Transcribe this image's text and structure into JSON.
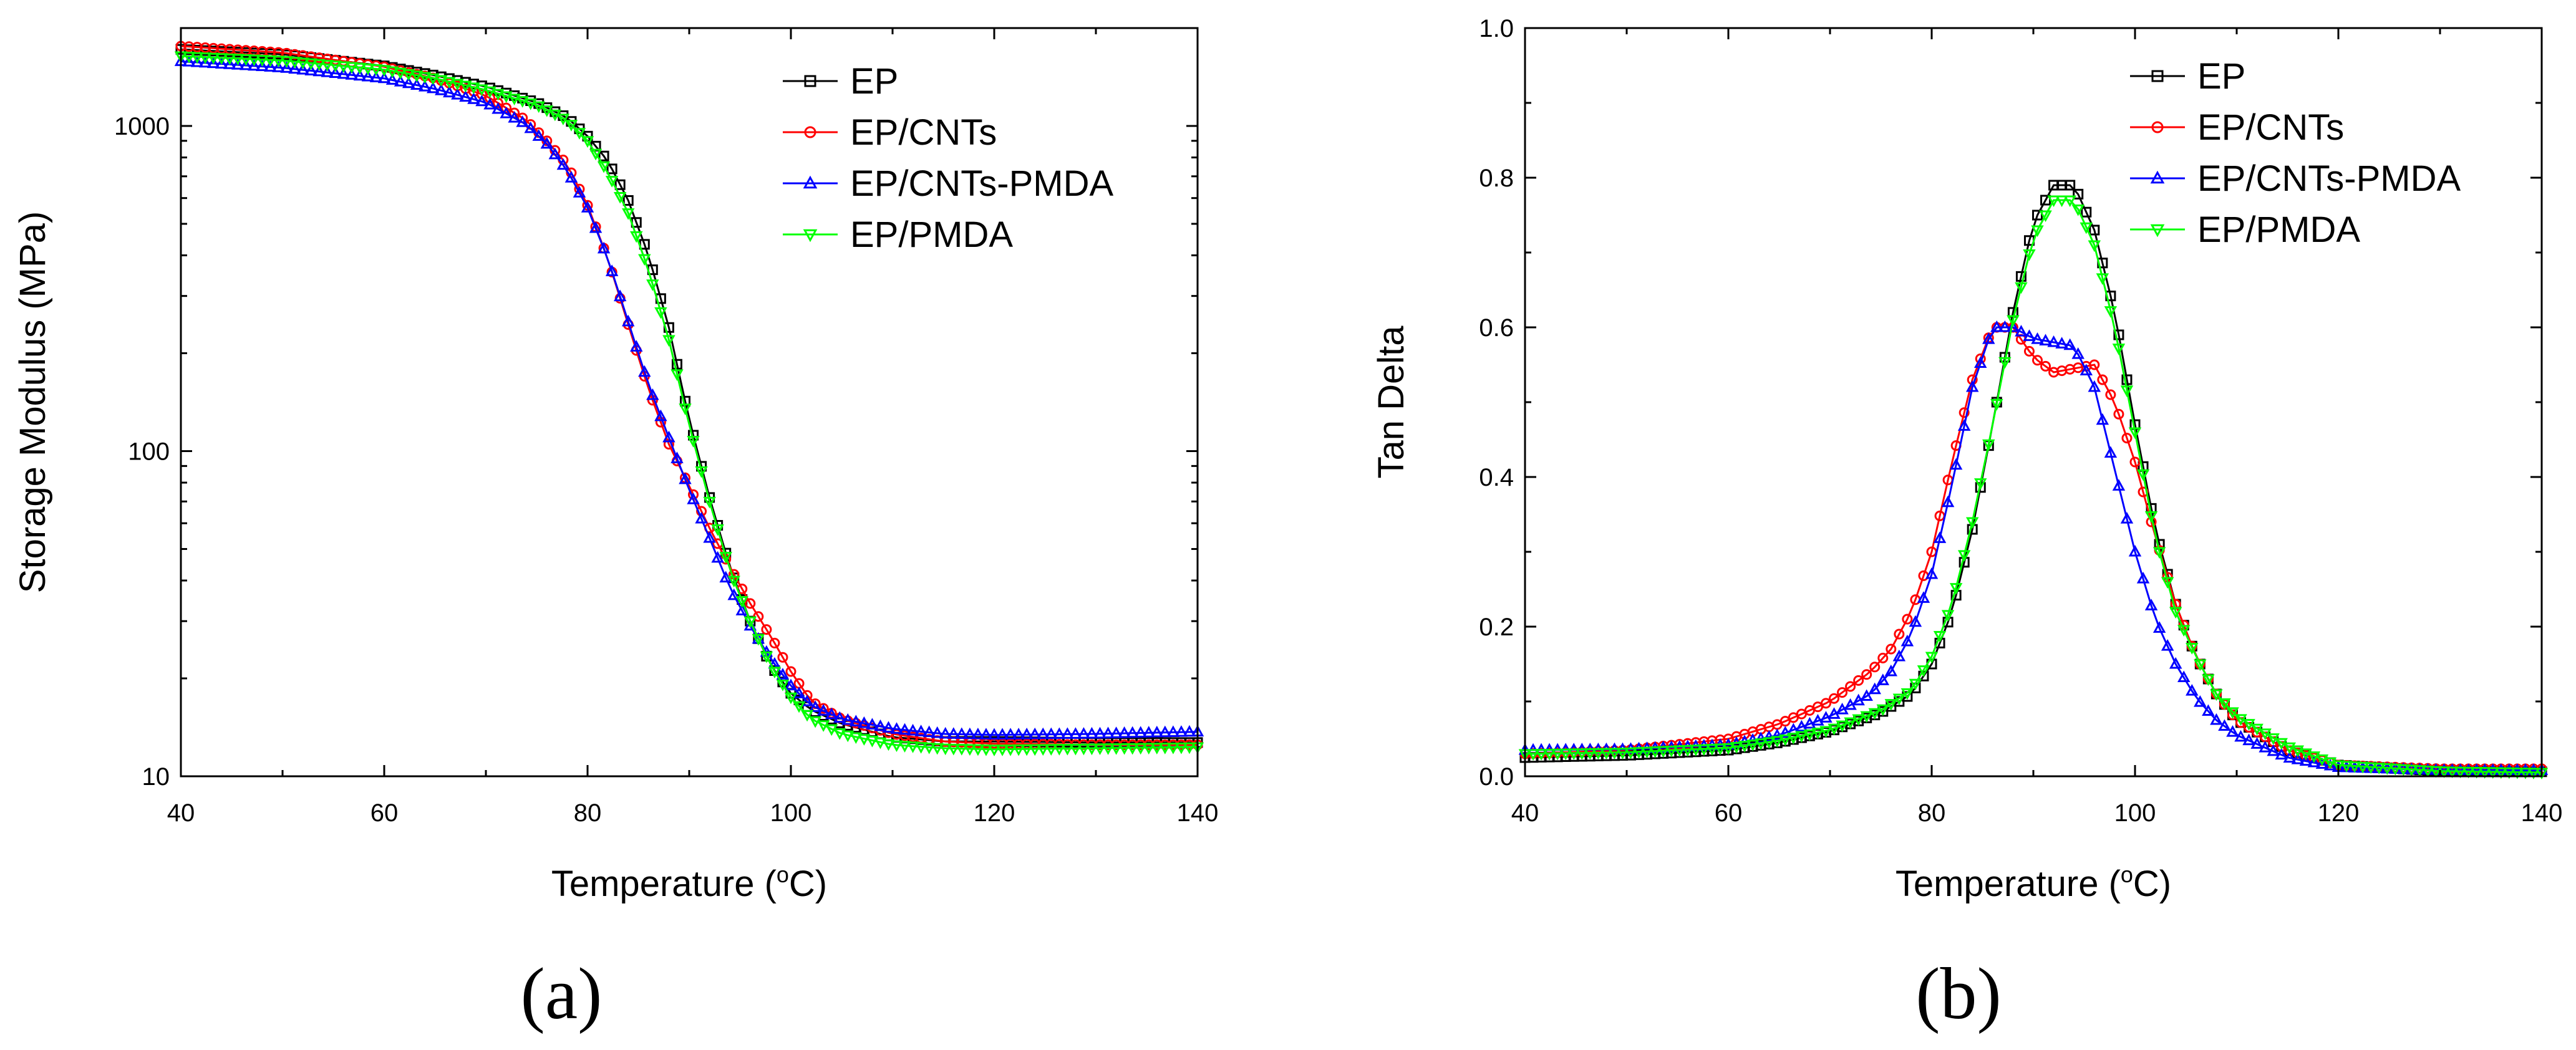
{
  "chart_data": [
    {
      "type": "line",
      "panel_label": "(a)",
      "xlabel": "Temperature (",
      "xlabel_sup": "o",
      "xlabel_tail": "C)",
      "ylabel": "Storage Modulus (MPa)",
      "yscale": "log",
      "xlim": [
        40,
        140
      ],
      "ylim": [
        10,
        2000
      ],
      "x_ticks": [
        40,
        60,
        80,
        100,
        120,
        140
      ],
      "y_ticks": [
        10,
        100,
        1000
      ],
      "y_tick_labels": [
        "10",
        "100",
        "1000"
      ],
      "legend_position": "top-right",
      "series": [
        {
          "name": "EP",
          "color": "#000000",
          "marker": "square",
          "x": [
            40,
            50,
            60,
            65,
            70,
            75,
            78,
            80,
            82,
            84,
            86,
            88,
            90,
            92,
            94,
            96,
            98,
            100,
            102,
            105,
            110,
            115,
            120,
            130,
            140
          ],
          "y": [
            1720,
            1660,
            1530,
            1430,
            1320,
            1180,
            1060,
            930,
            780,
            590,
            400,
            240,
            125,
            72,
            44,
            30,
            22,
            18,
            16,
            14.5,
            13.2,
            12.8,
            12.8,
            12.7,
            12.7
          ]
        },
        {
          "name": "EP/CNTs",
          "color": "#ff0000",
          "marker": "circle",
          "x": [
            40,
            50,
            60,
            65,
            70,
            74,
            76,
            78,
            80,
            82,
            84,
            86,
            88,
            90,
            92,
            94,
            96,
            98,
            100,
            102,
            105,
            110,
            115,
            120,
            130,
            140
          ],
          "y": [
            1760,
            1680,
            1520,
            1400,
            1240,
            1040,
            900,
            760,
            570,
            390,
            245,
            155,
            105,
            78,
            58,
            44,
            34,
            27,
            21,
            17,
            15,
            13.5,
            12.8,
            12.6,
            12.5,
            12.5
          ]
        },
        {
          "name": "EP/CNTs-PMDA",
          "color": "#0000ff",
          "marker": "triangle-up",
          "x": [
            40,
            50,
            60,
            65,
            70,
            74,
            76,
            78,
            80,
            82,
            84,
            86,
            88,
            90,
            92,
            94,
            96,
            98,
            100,
            102,
            105,
            110,
            115,
            120,
            130,
            140
          ],
          "y": [
            1580,
            1510,
            1400,
            1300,
            1180,
            1010,
            880,
            730,
            560,
            390,
            250,
            160,
            110,
            76,
            54,
            38,
            29,
            23,
            19,
            16.5,
            15,
            14,
            13.5,
            13.4,
            13.5,
            13.7
          ]
        },
        {
          "name": "EP/PMDA",
          "color": "#00ff00",
          "marker": "triangle-down",
          "x": [
            40,
            50,
            60,
            65,
            70,
            75,
            78,
            80,
            82,
            84,
            86,
            88,
            90,
            92,
            94,
            96,
            98,
            100,
            102,
            105,
            110,
            115,
            120,
            130,
            140
          ],
          "y": [
            1640,
            1590,
            1490,
            1400,
            1290,
            1160,
            1040,
            900,
            720,
            540,
            360,
            220,
            120,
            70,
            43,
            30,
            22,
            17.5,
            15,
            13.5,
            12.5,
            12.2,
            12.1,
            12.2,
            12.3
          ]
        }
      ]
    },
    {
      "type": "line",
      "panel_label": "(b)",
      "xlabel": "Temperature (",
      "xlabel_sup": "o",
      "xlabel_tail": "C)",
      "ylabel": "Tan Delta",
      "yscale": "linear",
      "xlim": [
        40,
        140
      ],
      "ylim": [
        0.0,
        1.0
      ],
      "x_ticks": [
        40,
        60,
        80,
        100,
        120,
        140
      ],
      "y_ticks": [
        0.0,
        0.2,
        0.4,
        0.6,
        0.8,
        1.0
      ],
      "y_tick_labels": [
        "0.0",
        "0.2",
        "0.4",
        "0.6",
        "0.8",
        "1.0"
      ],
      "legend_position": "top-right",
      "series": [
        {
          "name": "EP",
          "color": "#000000",
          "marker": "square",
          "x": [
            40,
            50,
            60,
            65,
            70,
            75,
            78,
            80,
            82,
            84,
            86,
            88,
            90,
            92,
            94,
            96,
            98,
            100,
            102,
            104,
            106,
            108,
            110,
            115,
            120,
            130,
            140
          ],
          "y": [
            0.025,
            0.028,
            0.035,
            0.045,
            0.06,
            0.085,
            0.11,
            0.15,
            0.22,
            0.33,
            0.47,
            0.62,
            0.74,
            0.79,
            0.79,
            0.73,
            0.62,
            0.47,
            0.33,
            0.23,
            0.16,
            0.11,
            0.075,
            0.035,
            0.015,
            0.007,
            0.006
          ]
        },
        {
          "name": "EP/CNTs",
          "color": "#ff0000",
          "marker": "circle",
          "x": [
            40,
            50,
            60,
            65,
            70,
            74,
            76,
            78,
            80,
            82,
            84,
            86,
            88,
            90,
            92,
            94,
            96,
            98,
            100,
            102,
            104,
            106,
            108,
            110,
            115,
            120,
            130,
            140
          ],
          "y": [
            0.03,
            0.035,
            0.05,
            0.07,
            0.1,
            0.14,
            0.17,
            0.22,
            0.3,
            0.42,
            0.53,
            0.6,
            0.6,
            0.56,
            0.54,
            0.545,
            0.55,
            0.5,
            0.42,
            0.32,
            0.23,
            0.16,
            0.11,
            0.075,
            0.035,
            0.015,
            0.01,
            0.01
          ]
        },
        {
          "name": "EP/CNTs-PMDA",
          "color": "#0000ff",
          "marker": "triangle-up",
          "x": [
            40,
            50,
            60,
            65,
            70,
            74,
            76,
            78,
            80,
            82,
            84,
            86,
            88,
            90,
            92,
            94,
            96,
            98,
            100,
            102,
            104,
            106,
            108,
            110,
            115,
            120,
            130,
            140
          ],
          "y": [
            0.035,
            0.036,
            0.042,
            0.055,
            0.08,
            0.11,
            0.14,
            0.19,
            0.27,
            0.39,
            0.52,
            0.6,
            0.6,
            0.585,
            0.58,
            0.575,
            0.52,
            0.41,
            0.3,
            0.21,
            0.15,
            0.105,
            0.075,
            0.055,
            0.025,
            0.012,
            0.008,
            0.008
          ]
        },
        {
          "name": "EP/PMDA",
          "color": "#00ff00",
          "marker": "triangle-down",
          "x": [
            40,
            50,
            60,
            65,
            70,
            75,
            78,
            80,
            82,
            84,
            86,
            88,
            90,
            92,
            94,
            96,
            98,
            100,
            102,
            104,
            106,
            108,
            110,
            115,
            120,
            130,
            140
          ],
          "y": [
            0.03,
            0.032,
            0.038,
            0.048,
            0.062,
            0.088,
            0.115,
            0.16,
            0.23,
            0.34,
            0.47,
            0.61,
            0.72,
            0.77,
            0.77,
            0.71,
            0.6,
            0.46,
            0.32,
            0.22,
            0.16,
            0.11,
            0.08,
            0.04,
            0.015,
            0.007,
            0.005
          ]
        }
      ]
    }
  ]
}
